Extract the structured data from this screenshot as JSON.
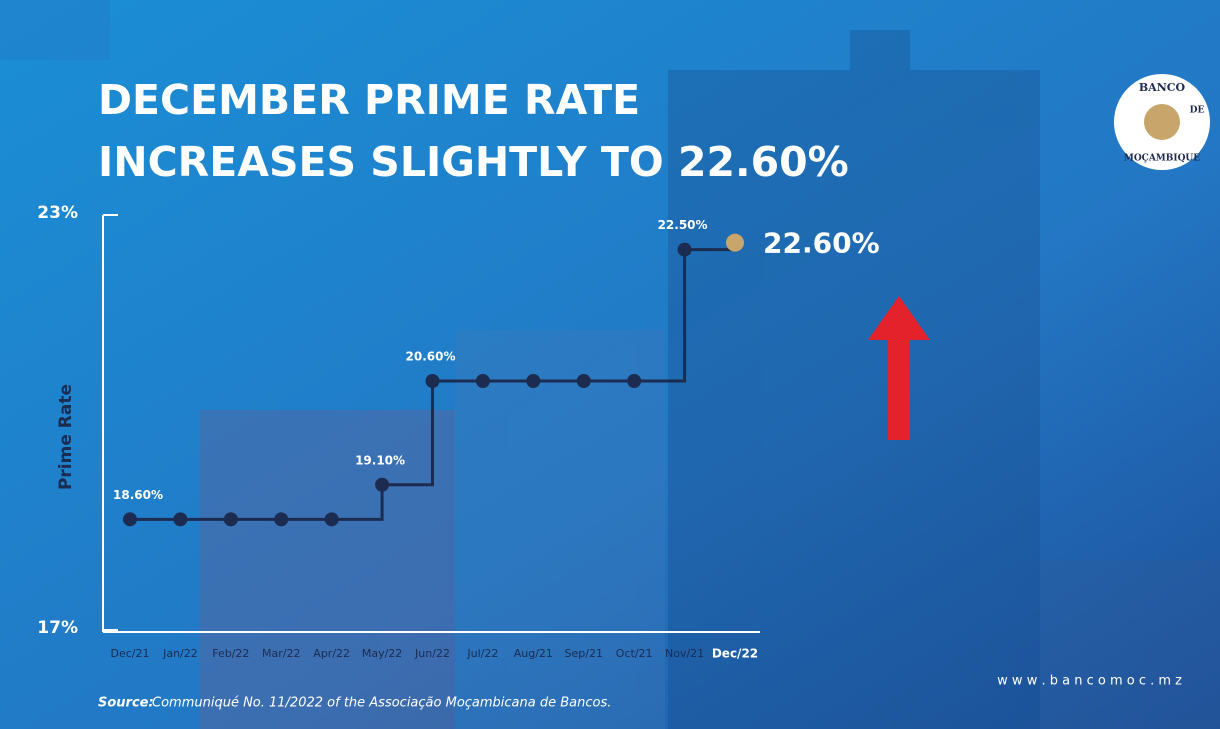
{
  "chart_data": {
    "type": "step",
    "title": [
      "DECEMBER PRIME RATE",
      "INCREASES SLIGHTLY TO 22.60%"
    ],
    "y_label": "Prime Rate",
    "categories": [
      "Dec/21",
      "Jan/22",
      "Feb/22",
      "Mar/22",
      "Apr/22",
      "May/22",
      "Jun/22",
      "Jul/22",
      "Aug/21",
      "Sep/21",
      "Oct/21",
      "Nov/21",
      "Dec/22"
    ],
    "series": [
      {
        "name": "Prime Rate",
        "color": "#1c2b50",
        "values": [
          18.6,
          18.6,
          18.6,
          18.6,
          18.6,
          19.1,
          20.6,
          20.6,
          20.6,
          20.6,
          20.6,
          22.5,
          22.6
        ],
        "value_labels": [
          "18.60%",
          null,
          null,
          null,
          null,
          "19.10%",
          "20.60%",
          null,
          null,
          null,
          null,
          "22.50%",
          "22.60%"
        ]
      }
    ],
    "highlight_color": "#c8a56a",
    "ylim": [
      17,
      23
    ],
    "yticks": [
      {
        "value": 17,
        "label": "17%"
      },
      {
        "value": 23,
        "label": "23%"
      }
    ],
    "source_label": "Source:",
    "source": "Communiqué No. 11/2022 of the Associação Moçambicana de Bancos.",
    "website": "w w w . b a n c o m o c . m z",
    "logo_text": [
      "BANCO",
      "DE",
      "MOÇAMBIQUE"
    ]
  }
}
